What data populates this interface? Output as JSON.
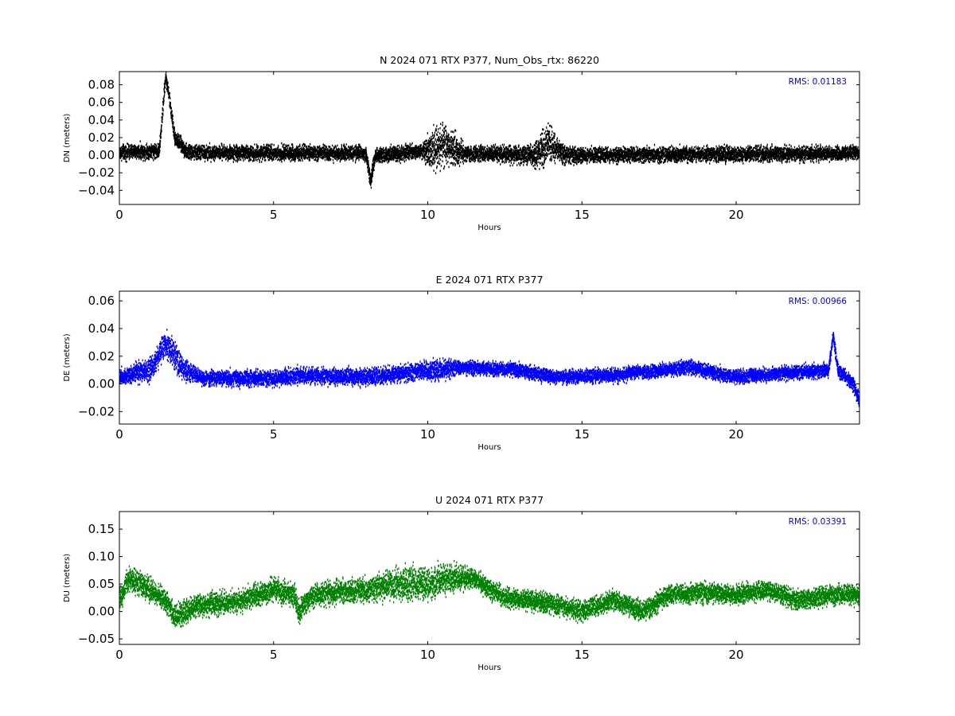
{
  "chart_data": [
    {
      "type": "scatter",
      "title": "N 2024 071 RTX  P377, Num_Obs_rtx: 86220",
      "xlabel": "Hours",
      "ylabel": "DN (meters)",
      "annotation": "RMS:  0.01183",
      "color": "#000000",
      "xlim": [
        0,
        24
      ],
      "ylim": [
        -0.056,
        0.095
      ],
      "xticks": [
        0,
        5,
        10,
        15,
        20
      ],
      "yticks": [
        -0.04,
        -0.02,
        0.0,
        0.02,
        0.04,
        0.06,
        0.08
      ],
      "ytick_labels": [
        "−0.04",
        "−0.02",
        "0.00",
        "0.02",
        "0.04",
        "0.06",
        "0.08"
      ],
      "series": [
        {
          "trend": [
            [
              0,
              0.003
            ],
            [
              1.3,
              0.005
            ],
            [
              1.5,
              0.09
            ],
            [
              1.6,
              0.07
            ],
            [
              1.8,
              0.02
            ],
            [
              2.2,
              0.003
            ],
            [
              8.0,
              0.002
            ],
            [
              8.15,
              -0.03
            ],
            [
              8.3,
              0.0
            ],
            [
              10.0,
              0.005
            ],
            [
              10.5,
              0.01
            ],
            [
              11.2,
              0.002
            ],
            [
              13.5,
              0.0
            ],
            [
              13.9,
              0.015
            ],
            [
              14.5,
              0.0
            ],
            [
              24,
              0.002
            ]
          ],
          "spread": [
            [
              0,
              0.012
            ],
            [
              9.8,
              0.012
            ],
            [
              10.2,
              0.035
            ],
            [
              10.9,
              0.03
            ],
            [
              11.2,
              0.012
            ],
            [
              13.3,
              0.015
            ],
            [
              13.8,
              0.03
            ],
            [
              14.5,
              0.015
            ],
            [
              15.0,
              0.012
            ],
            [
              24,
              0.012
            ]
          ]
        }
      ]
    },
    {
      "type": "scatter",
      "title": "E 2024 071 RTX  P377",
      "xlabel": "Hours",
      "ylabel": "DE (meters)",
      "annotation": "RMS:  0.00966",
      "color": "#0000ff",
      "xlim": [
        0,
        24
      ],
      "ylim": [
        -0.029,
        0.067
      ],
      "xticks": [
        0,
        5,
        10,
        15,
        20
      ],
      "yticks": [
        -0.02,
        0.0,
        0.02,
        0.04,
        0.06
      ],
      "ytick_labels": [
        "−0.02",
        "0.00",
        "0.02",
        "0.04",
        "0.06"
      ],
      "series": [
        {
          "trend": [
            [
              0,
              0.005
            ],
            [
              1.0,
              0.01
            ],
            [
              1.5,
              0.03
            ],
            [
              2.0,
              0.012
            ],
            [
              2.7,
              0.004
            ],
            [
              5.0,
              0.004
            ],
            [
              6.0,
              0.006
            ],
            [
              8.0,
              0.005
            ],
            [
              10.3,
              0.01
            ],
            [
              11.0,
              0.012
            ],
            [
              13.0,
              0.01
            ],
            [
              14.0,
              0.005
            ],
            [
              16.0,
              0.006
            ],
            [
              18.5,
              0.012
            ],
            [
              20.0,
              0.005
            ],
            [
              23.0,
              0.01
            ],
            [
              23.15,
              0.035
            ],
            [
              23.3,
              0.01
            ],
            [
              23.8,
              0.0
            ],
            [
              24,
              -0.013
            ]
          ],
          "spread": [
            [
              0,
              0.008
            ],
            [
              1.0,
              0.012
            ],
            [
              1.8,
              0.014
            ],
            [
              2.5,
              0.008
            ],
            [
              9.8,
              0.009
            ],
            [
              10.4,
              0.012
            ],
            [
              11.0,
              0.007
            ],
            [
              24,
              0.007
            ]
          ]
        }
      ]
    },
    {
      "type": "scatter",
      "title": "U 2024 071 RTX  P377",
      "xlabel": "Hours",
      "ylabel": "DU (meters)",
      "annotation": "RMS:  0.03391",
      "color": "#008000",
      "xlim": [
        0,
        24
      ],
      "ylim": [
        -0.06,
        0.182
      ],
      "xticks": [
        0,
        5,
        10,
        15,
        20
      ],
      "yticks": [
        -0.05,
        0.0,
        0.05,
        0.1,
        0.15
      ],
      "ytick_labels": [
        "−0.05",
        "0.00",
        "0.05",
        "0.10",
        "0.15"
      ],
      "series": [
        {
          "trend": [
            [
              0,
              0.02
            ],
            [
              0.3,
              0.06
            ],
            [
              1.0,
              0.04
            ],
            [
              1.5,
              0.02
            ],
            [
              1.8,
              -0.01
            ],
            [
              2.5,
              0.01
            ],
            [
              4.0,
              0.02
            ],
            [
              5.0,
              0.04
            ],
            [
              5.7,
              0.03
            ],
            [
              5.8,
              0.0
            ],
            [
              6.3,
              0.03
            ],
            [
              8.0,
              0.04
            ],
            [
              9.0,
              0.05
            ],
            [
              10.0,
              0.05
            ],
            [
              10.5,
              0.06
            ],
            [
              11.5,
              0.06
            ],
            [
              12.0,
              0.04
            ],
            [
              12.5,
              0.025
            ],
            [
              14.0,
              0.015
            ],
            [
              15.0,
              0.0
            ],
            [
              16.0,
              0.02
            ],
            [
              17.0,
              0.0
            ],
            [
              17.8,
              0.03
            ],
            [
              19.0,
              0.035
            ],
            [
              20.0,
              0.03
            ],
            [
              21.0,
              0.04
            ],
            [
              22.0,
              0.02
            ],
            [
              23.0,
              0.03
            ],
            [
              24,
              0.03
            ]
          ],
          "spread": [
            [
              0,
              0.03
            ],
            [
              7.5,
              0.03
            ],
            [
              9.5,
              0.045
            ],
            [
              10.5,
              0.04
            ],
            [
              11.5,
              0.025
            ],
            [
              24,
              0.025
            ]
          ]
        }
      ]
    }
  ]
}
